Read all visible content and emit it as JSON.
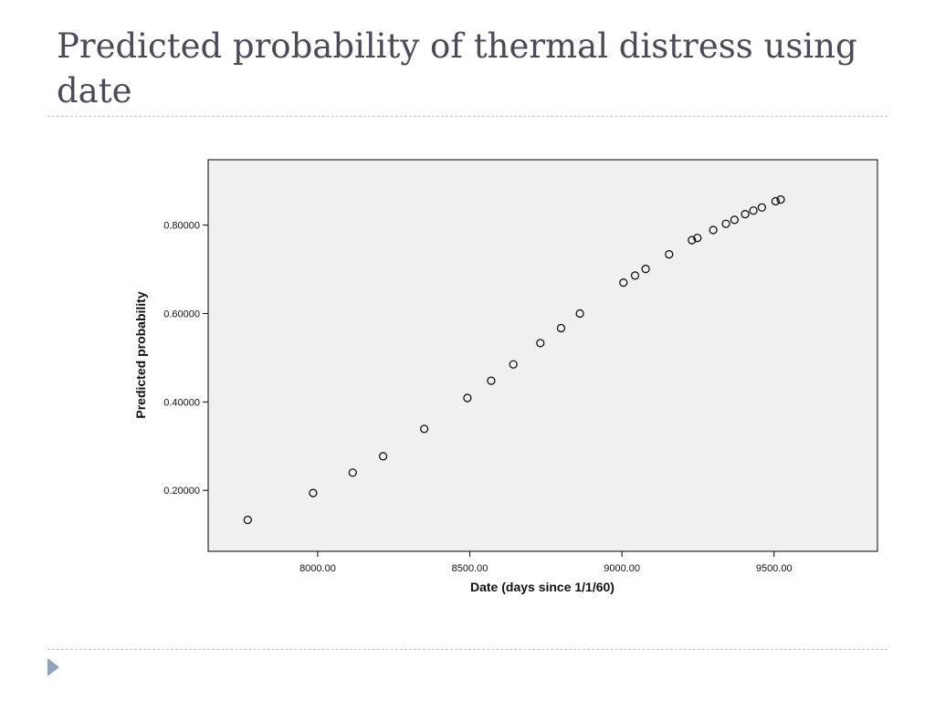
{
  "slide": {
    "title": "Predicted probability of thermal distress using date"
  },
  "chart_data": {
    "type": "scatter",
    "xlabel": "Date (days since 1/1/60)",
    "ylabel": "Predicted probability",
    "xlim": [
      7640,
      9840
    ],
    "ylim": [
      0.062,
      0.948
    ],
    "xticks": [
      8000,
      8500,
      9000,
      9500
    ],
    "xtick_labels": [
      "8000.00",
      "8500.00",
      "9000.00",
      "9500.00"
    ],
    "yticks": [
      0.2,
      0.4,
      0.6,
      0.8
    ],
    "ytick_labels": [
      "0.20000",
      "0.40000",
      "0.60000",
      "0.80000"
    ],
    "grid": false,
    "marker": "hollow-circle",
    "colors": {
      "plot_background": "#f0f0f0",
      "axis": "#000000",
      "marker": "#000000"
    },
    "points": [
      {
        "x": 7770,
        "y": 0.133
      },
      {
        "x": 7985,
        "y": 0.194
      },
      {
        "x": 8115,
        "y": 0.24
      },
      {
        "x": 8215,
        "y": 0.277
      },
      {
        "x": 8350,
        "y": 0.339
      },
      {
        "x": 8492,
        "y": 0.409
      },
      {
        "x": 8570,
        "y": 0.448
      },
      {
        "x": 8643,
        "y": 0.485
      },
      {
        "x": 8732,
        "y": 0.533
      },
      {
        "x": 8800,
        "y": 0.567
      },
      {
        "x": 8862,
        "y": 0.6
      },
      {
        "x": 9005,
        "y": 0.67
      },
      {
        "x": 9043,
        "y": 0.686
      },
      {
        "x": 9078,
        "y": 0.701
      },
      {
        "x": 9155,
        "y": 0.734
      },
      {
        "x": 9230,
        "y": 0.766
      },
      {
        "x": 9248,
        "y": 0.771
      },
      {
        "x": 9300,
        "y": 0.789
      },
      {
        "x": 9342,
        "y": 0.803
      },
      {
        "x": 9370,
        "y": 0.812
      },
      {
        "x": 9405,
        "y": 0.825
      },
      {
        "x": 9432,
        "y": 0.833
      },
      {
        "x": 9460,
        "y": 0.84
      },
      {
        "x": 9505,
        "y": 0.854
      },
      {
        "x": 9522,
        "y": 0.858
      }
    ]
  }
}
